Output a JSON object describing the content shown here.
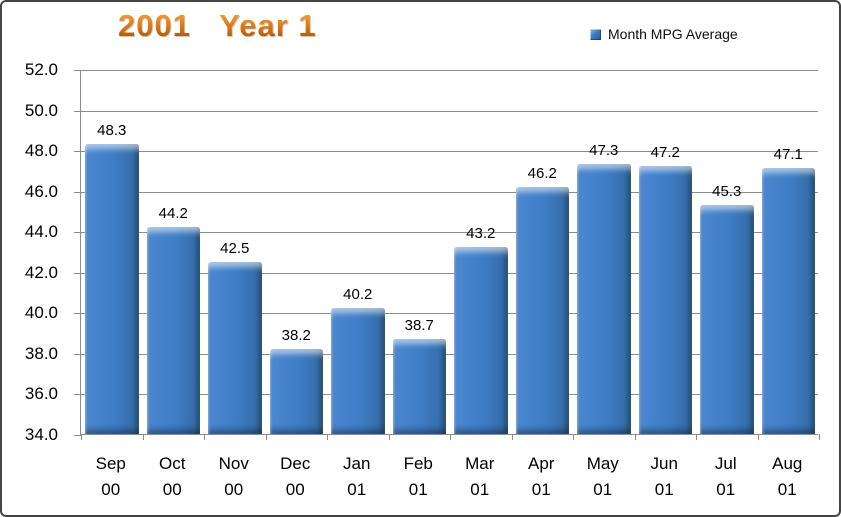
{
  "window": {
    "background": "#ffffff",
    "border_color": "#454545"
  },
  "header": {
    "title": "2001   Year 1",
    "title_gradient_top": "#f5a544",
    "title_gradient_bottom": "#9c4a04"
  },
  "legend": {
    "label": "Month MPG Average",
    "marker_color": "#3f7cc4"
  },
  "chart_data": {
    "type": "bar",
    "title": "2001   Year 1",
    "categories": [
      [
        "Sep",
        "00"
      ],
      [
        "Oct",
        "00"
      ],
      [
        "Nov",
        "00"
      ],
      [
        "Dec",
        "00"
      ],
      [
        "Jan",
        "01"
      ],
      [
        "Feb",
        "01"
      ],
      [
        "Mar",
        "01"
      ],
      [
        "Apr",
        "01"
      ],
      [
        "May",
        "01"
      ],
      [
        "Jun",
        "01"
      ],
      [
        "Jul",
        "01"
      ],
      [
        "Aug",
        "01"
      ]
    ],
    "series": [
      {
        "name": "Month MPG Average",
        "values": [
          48.3,
          44.2,
          42.5,
          38.2,
          40.2,
          38.7,
          43.2,
          46.2,
          47.3,
          47.2,
          45.3,
          47.1
        ]
      }
    ],
    "data_labels": [
      "48.3",
      "44.2",
      "42.5",
      "38.2",
      "40.2",
      "38.7",
      "43.2",
      "46.2",
      "47.3",
      "47.2",
      "45.3",
      "47.1"
    ],
    "xlabel": "",
    "ylabel": "",
    "ylim": [
      34,
      52
    ],
    "ytick_step": 2,
    "yticks": [
      "52.0",
      "50.0",
      "48.0",
      "46.0",
      "44.0",
      "42.0",
      "40.0",
      "38.0",
      "36.0",
      "34.0"
    ],
    "grid": true,
    "legend_position": "top-right",
    "bar_color": "#3f7cc4",
    "gridline_color": "#8c8c8c"
  }
}
